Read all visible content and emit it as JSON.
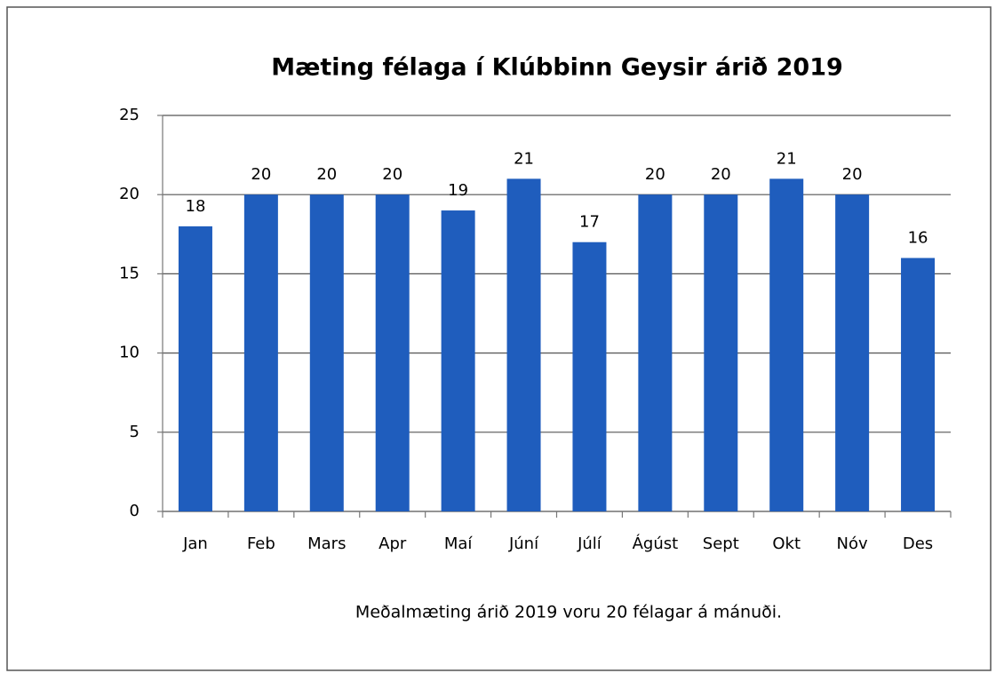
{
  "chart_data": {
    "type": "bar",
    "title": "Mæting félaga í Klúbbinn Geysir árið 2019",
    "annotation": "Meðalmæting árið 2019 voru 20 félagar á mánuði.",
    "categories": [
      "Jan",
      "Feb",
      "Mars",
      "Apr",
      "Maí",
      "Júní",
      "Júlí",
      "Ágúst",
      "Sept",
      "Okt",
      "Nóv",
      "Des"
    ],
    "values": [
      18,
      20,
      20,
      20,
      19,
      21,
      17,
      20,
      20,
      21,
      20,
      16
    ],
    "color": "#1f5dbd",
    "ylim": [
      0,
      25
    ],
    "yticks": [
      0,
      5,
      10,
      15,
      20,
      25
    ],
    "grid": true
  }
}
